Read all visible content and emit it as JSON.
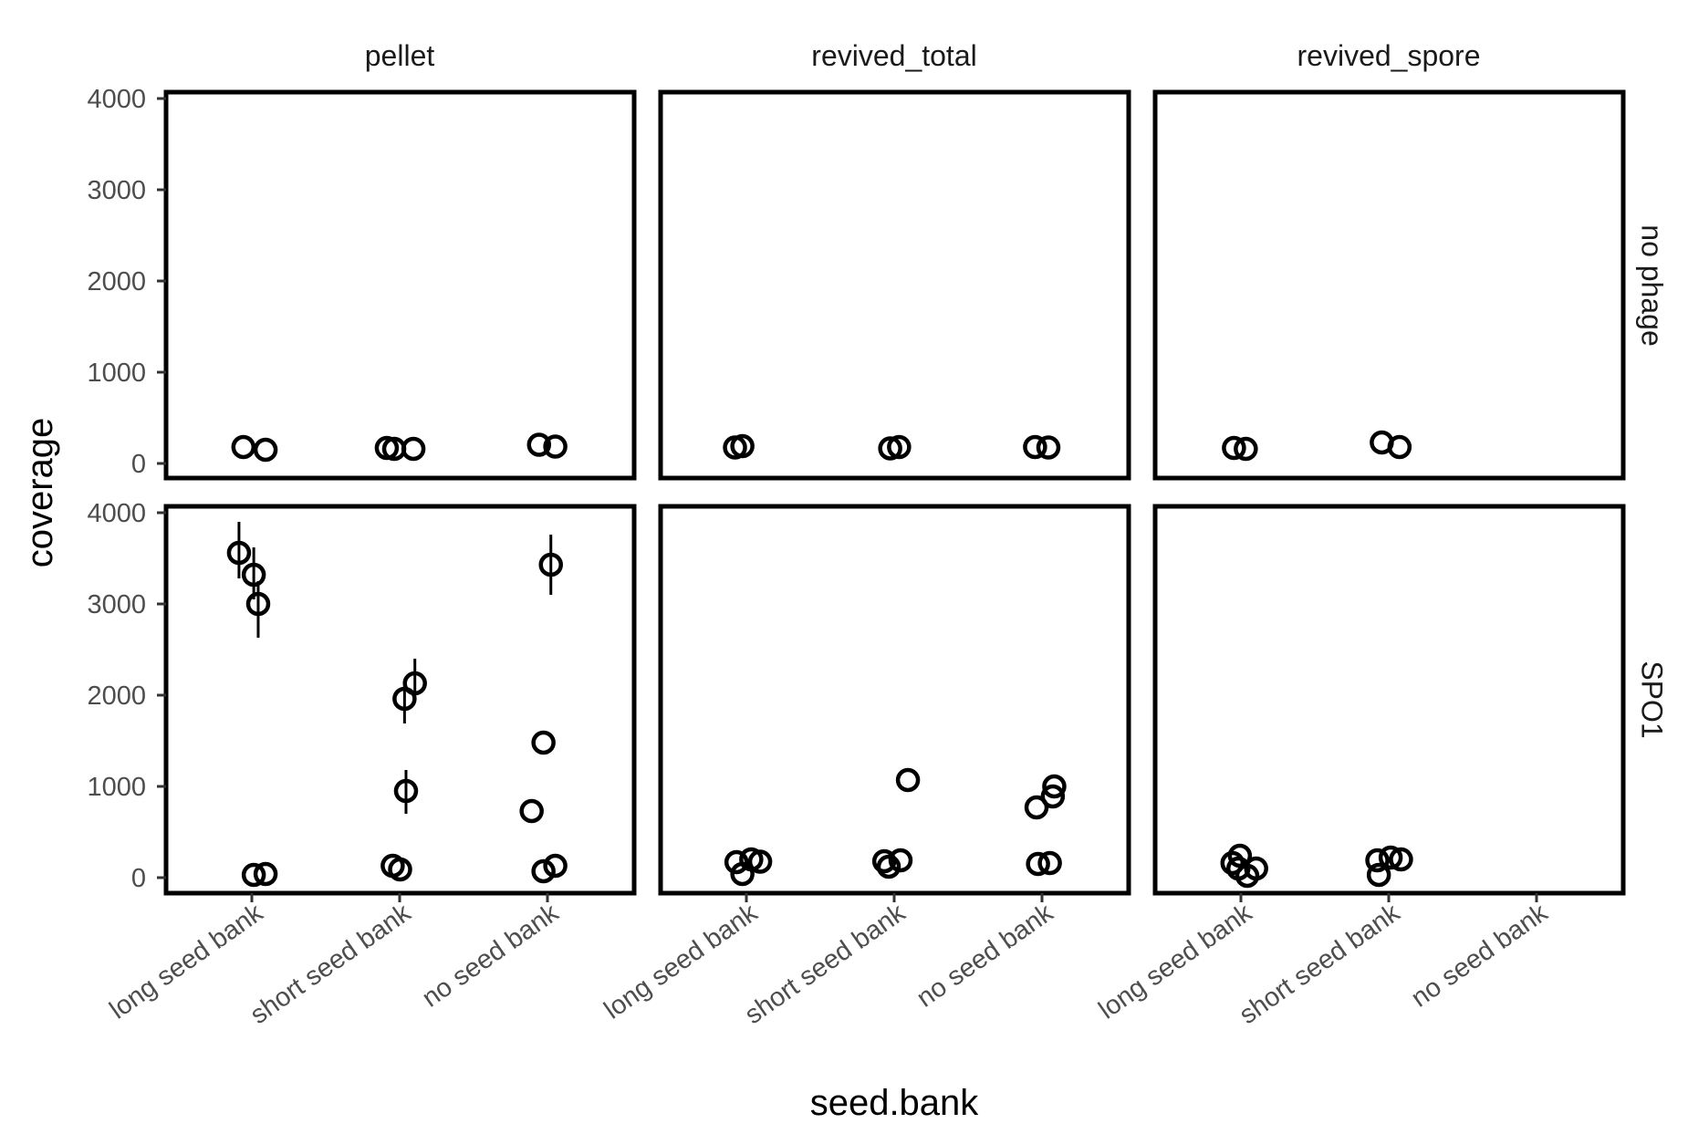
{
  "chart_data": {
    "type": "scatter",
    "xlabel": "seed.bank",
    "ylabel": "coverage",
    "categories": [
      "long seed bank",
      "short seed bank",
      "no seed bank"
    ],
    "facet_columns": [
      "pellet",
      "revived_total",
      "revived_spore"
    ],
    "facet_rows": [
      "no phage",
      "SPO1"
    ],
    "ylim": [
      -150,
      4100
    ],
    "yticks": [
      0,
      1000,
      2000,
      3000,
      4000
    ],
    "grid": false,
    "panels": [
      {
        "row": "no phage",
        "column": "pellet",
        "points": [
          {
            "category": "long seed bank",
            "jitter": -0.06,
            "y": 180
          },
          {
            "category": "long seed bank",
            "jitter": 0.09,
            "y": 150
          },
          {
            "category": "short seed bank",
            "jitter": -0.09,
            "y": 170
          },
          {
            "category": "short seed bank",
            "jitter": -0.04,
            "y": 160
          },
          {
            "category": "short seed bank",
            "jitter": 0.09,
            "y": 160
          },
          {
            "category": "no seed bank",
            "jitter": -0.06,
            "y": 205
          },
          {
            "category": "no seed bank",
            "jitter": 0.05,
            "y": 185
          }
        ]
      },
      {
        "row": "no phage",
        "column": "revived_total",
        "points": [
          {
            "category": "long seed bank",
            "jitter": -0.08,
            "y": 175
          },
          {
            "category": "long seed bank",
            "jitter": -0.03,
            "y": 190
          },
          {
            "category": "short seed bank",
            "jitter": -0.03,
            "y": 165
          },
          {
            "category": "short seed bank",
            "jitter": 0.03,
            "y": 180
          },
          {
            "category": "no seed bank",
            "jitter": -0.05,
            "y": 180
          },
          {
            "category": "no seed bank",
            "jitter": 0.04,
            "y": 175
          }
        ]
      },
      {
        "row": "no phage",
        "column": "revived_spore",
        "points": [
          {
            "category": "long seed bank",
            "jitter": -0.05,
            "y": 170
          },
          {
            "category": "long seed bank",
            "jitter": 0.03,
            "y": 160
          },
          {
            "category": "short seed bank",
            "jitter": -0.05,
            "y": 230
          },
          {
            "category": "short seed bank",
            "jitter": 0.07,
            "y": 180
          }
        ]
      },
      {
        "row": "SPO1",
        "column": "pellet",
        "points": [
          {
            "category": "long seed bank",
            "jitter": -0.09,
            "y": 3560,
            "ymin": 3280,
            "ymax": 3900
          },
          {
            "category": "long seed bank",
            "jitter": 0.01,
            "y": 3320,
            "ymin": 3050,
            "ymax": 3620
          },
          {
            "category": "long seed bank",
            "jitter": 0.04,
            "y": 3000,
            "ymin": 2630,
            "ymax": 3250
          },
          {
            "category": "long seed bank",
            "jitter": 0.01,
            "y": 30
          },
          {
            "category": "long seed bank",
            "jitter": 0.09,
            "y": 40
          },
          {
            "category": "short seed bank",
            "jitter": 0.03,
            "y": 1960,
            "ymin": 1690,
            "ymax": 2100
          },
          {
            "category": "short seed bank",
            "jitter": 0.1,
            "y": 2130,
            "ymin": 1960,
            "ymax": 2400
          },
          {
            "category": "short seed bank",
            "jitter": 0.04,
            "y": 950,
            "ymin": 700,
            "ymax": 1180
          },
          {
            "category": "short seed bank",
            "jitter": -0.05,
            "y": 130
          },
          {
            "category": "short seed bank",
            "jitter": 0.0,
            "y": 90
          },
          {
            "category": "no seed bank",
            "jitter": 0.02,
            "y": 3430,
            "ymin": 3100,
            "ymax": 3760
          },
          {
            "category": "no seed bank",
            "jitter": -0.03,
            "y": 1480
          },
          {
            "category": "no seed bank",
            "jitter": -0.11,
            "y": 730
          },
          {
            "category": "no seed bank",
            "jitter": -0.03,
            "y": 70
          },
          {
            "category": "no seed bank",
            "jitter": 0.05,
            "y": 130
          }
        ]
      },
      {
        "row": "SPO1",
        "column": "revived_total",
        "points": [
          {
            "category": "long seed bank",
            "jitter": -0.07,
            "y": 170
          },
          {
            "category": "long seed bank",
            "jitter": -0.03,
            "y": 40
          },
          {
            "category": "long seed bank",
            "jitter": 0.03,
            "y": 200
          },
          {
            "category": "long seed bank",
            "jitter": 0.09,
            "y": 175
          },
          {
            "category": "short seed bank",
            "jitter": -0.07,
            "y": 180
          },
          {
            "category": "short seed bank",
            "jitter": -0.04,
            "y": 120
          },
          {
            "category": "short seed bank",
            "jitter": 0.04,
            "y": 190
          },
          {
            "category": "short seed bank",
            "jitter": 0.09,
            "y": 1070
          },
          {
            "category": "no seed bank",
            "jitter": -0.03,
            "y": 150
          },
          {
            "category": "no seed bank",
            "jitter": 0.05,
            "y": 160
          },
          {
            "category": "no seed bank",
            "jitter": -0.04,
            "y": 770
          },
          {
            "category": "no seed bank",
            "jitter": 0.07,
            "y": 890
          },
          {
            "category": "no seed bank",
            "jitter": 0.08,
            "y": 1000
          }
        ]
      },
      {
        "row": "SPO1",
        "column": "revived_spore",
        "points": [
          {
            "category": "long seed bank",
            "jitter": -0.06,
            "y": 160
          },
          {
            "category": "long seed bank",
            "jitter": -0.02,
            "y": 100
          },
          {
            "category": "long seed bank",
            "jitter": -0.01,
            "y": 240
          },
          {
            "category": "long seed bank",
            "jitter": 0.04,
            "y": 20
          },
          {
            "category": "long seed bank",
            "jitter": 0.1,
            "y": 100
          },
          {
            "category": "short seed bank",
            "jitter": -0.08,
            "y": 190
          },
          {
            "category": "short seed bank",
            "jitter": -0.07,
            "y": 30
          },
          {
            "category": "short seed bank",
            "jitter": 0.01,
            "y": 220
          },
          {
            "category": "short seed bank",
            "jitter": 0.08,
            "y": 200
          }
        ]
      }
    ]
  }
}
